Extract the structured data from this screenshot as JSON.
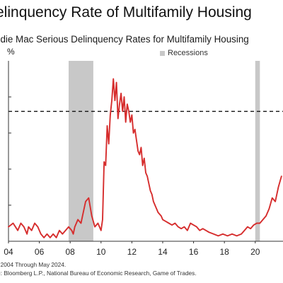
{
  "chart_data": {
    "type": "line",
    "title": "elinquency Rate of Multifamily Housing",
    "subtitle": "ddie Mac Serious Delinquency Rates for Multifamily Housing",
    "ylabel": "%",
    "legend": {
      "label": "Recessions",
      "position": "top-right",
      "color": "#c8c8c8"
    },
    "x_ticks": [
      "04",
      "06",
      "08",
      "10",
      "12",
      "14",
      "16",
      "18",
      "20"
    ],
    "xlim": [
      2004.0,
      2021.8
    ],
    "ylim": [
      0,
      0.5
    ],
    "recessions": [
      {
        "start": 2007.9,
        "end": 2009.5
      },
      {
        "start": 2020.0,
        "end": 2020.3
      }
    ],
    "reference_line": {
      "value": 0.36,
      "style": "dashed"
    },
    "line_color": "#d62d2d",
    "series": [
      {
        "x": [
          2004.0,
          2004.3,
          2004.6,
          2004.8,
          2005.0,
          2005.2,
          2005.3,
          2005.5,
          2005.7,
          2005.9,
          2006.1,
          2006.3,
          2006.5,
          2006.7,
          2006.9,
          2007.1,
          2007.3,
          2007.5,
          2007.7,
          2007.9,
          2008.1,
          2008.2,
          2008.3,
          2008.5,
          2008.7,
          2008.9,
          2009.0,
          2009.2,
          2009.4,
          2009.6,
          2009.8,
          2009.9,
          2010.0,
          2010.1,
          2010.2,
          2010.3,
          2010.4,
          2010.5,
          2010.6,
          2010.7,
          2010.8,
          2010.9,
          2011.0,
          2011.1,
          2011.2,
          2011.3,
          2011.4,
          2011.5,
          2011.6,
          2011.7,
          2011.8,
          2011.9,
          2012.0,
          2012.1,
          2012.2,
          2012.3,
          2012.4,
          2012.5,
          2012.6,
          2012.7,
          2012.8,
          2012.9,
          2013.0,
          2013.1,
          2013.2,
          2013.3,
          2013.4,
          2013.5,
          2013.6,
          2013.7,
          2013.8,
          2013.9,
          2014.0,
          2014.2,
          2014.4,
          2014.6,
          2014.8,
          2015.0,
          2015.2,
          2015.4,
          2015.6,
          2015.8,
          2016.0,
          2016.2,
          2016.4,
          2016.6,
          2016.8,
          2017.0,
          2017.3,
          2017.6,
          2017.9,
          2018.2,
          2018.5,
          2018.8,
          2019.1,
          2019.3,
          2019.5,
          2019.7,
          2019.9,
          2020.1,
          2020.3,
          2020.5,
          2020.7,
          2020.9,
          2021.1,
          2021.3,
          2021.5,
          2021.7
        ],
        "y": [
          0.04,
          0.05,
          0.03,
          0.05,
          0.04,
          0.02,
          0.04,
          0.03,
          0.05,
          0.04,
          0.02,
          0.01,
          0.02,
          0.01,
          0.02,
          0.01,
          0.03,
          0.02,
          0.03,
          0.04,
          0.03,
          0.02,
          0.04,
          0.06,
          0.05,
          0.09,
          0.11,
          0.12,
          0.07,
          0.04,
          0.05,
          0.04,
          0.03,
          0.06,
          0.22,
          0.21,
          0.32,
          0.27,
          0.35,
          0.39,
          0.45,
          0.39,
          0.44,
          0.34,
          0.38,
          0.41,
          0.36,
          0.4,
          0.33,
          0.38,
          0.36,
          0.33,
          0.35,
          0.3,
          0.31,
          0.28,
          0.25,
          0.24,
          0.26,
          0.21,
          0.23,
          0.19,
          0.18,
          0.16,
          0.14,
          0.13,
          0.11,
          0.1,
          0.09,
          0.08,
          0.075,
          0.07,
          0.06,
          0.055,
          0.05,
          0.045,
          0.05,
          0.04,
          0.035,
          0.04,
          0.03,
          0.05,
          0.045,
          0.04,
          0.03,
          0.035,
          0.03,
          0.025,
          0.02,
          0.015,
          0.02,
          0.015,
          0.02,
          0.015,
          0.02,
          0.03,
          0.04,
          0.035,
          0.045,
          0.05,
          0.05,
          0.06,
          0.07,
          0.09,
          0.12,
          0.11,
          0.15,
          0.18
        ]
      }
    ],
    "note": ": 2004 Through May 2024.",
    "source": "e: Bloomberg L.P., National Bureau of Economic Research, Game of Trades."
  }
}
